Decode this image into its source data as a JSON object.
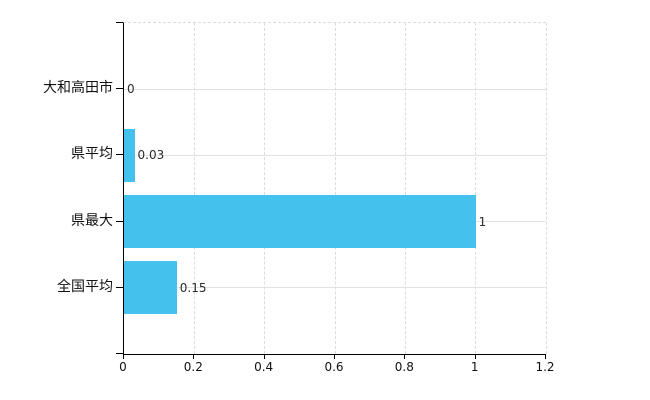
{
  "chart_data": {
    "type": "bar",
    "orientation": "horizontal",
    "title": "",
    "categories": [
      "大和高田市",
      "県平均",
      "県最大",
      "全国平均"
    ],
    "values": [
      0,
      0.03,
      1,
      0.15
    ],
    "value_labels": [
      "0",
      "0.03",
      "1",
      "0.15"
    ],
    "xlabel": "",
    "ylabel": "",
    "xlim": [
      0,
      1.2
    ],
    "x_tick_values": [
      0,
      0.2,
      0.4,
      0.6,
      0.8,
      1,
      1.2
    ],
    "x_tick_labels": [
      "0",
      "0.2",
      "0.4",
      "0.6",
      "0.8",
      "1",
      "1.2"
    ],
    "grid": true,
    "legend": false,
    "colors": {
      "bar": "#45c1ee",
      "axis": "#000000",
      "grid_vertical": "#dedade",
      "grid_horizontal": "#dfe4df",
      "text": "#111111",
      "background": "#ffffff"
    }
  }
}
